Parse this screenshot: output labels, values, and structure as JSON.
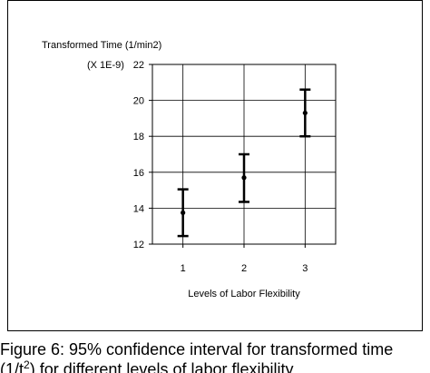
{
  "chart_data": {
    "type": "errorbar",
    "ylabel": "Transformed Time (1/min2)",
    "y_multiplier": "(X 1E-9)",
    "xlabel": "Levels of Labor Flexibility",
    "categories": [
      "1",
      "2",
      "3"
    ],
    "x_range": [
      0.5,
      3.5
    ],
    "ylim": [
      12,
      22
    ],
    "yticks": [
      "12",
      "14",
      "16",
      "18",
      "20",
      "22"
    ],
    "grid": true,
    "series": [
      {
        "means": [
          13.75,
          15.7,
          19.3
        ],
        "lower": [
          12.45,
          14.35,
          18.0
        ],
        "upper": [
          15.05,
          17.0,
          20.6
        ]
      }
    ]
  },
  "caption": {
    "line1": "Figure 6: 95% confidence interval for transformed time",
    "line2_prefix": "(1/t",
    "line2_sup": "2",
    "line2_suffix": ") for different levels of labor flexibility"
  }
}
